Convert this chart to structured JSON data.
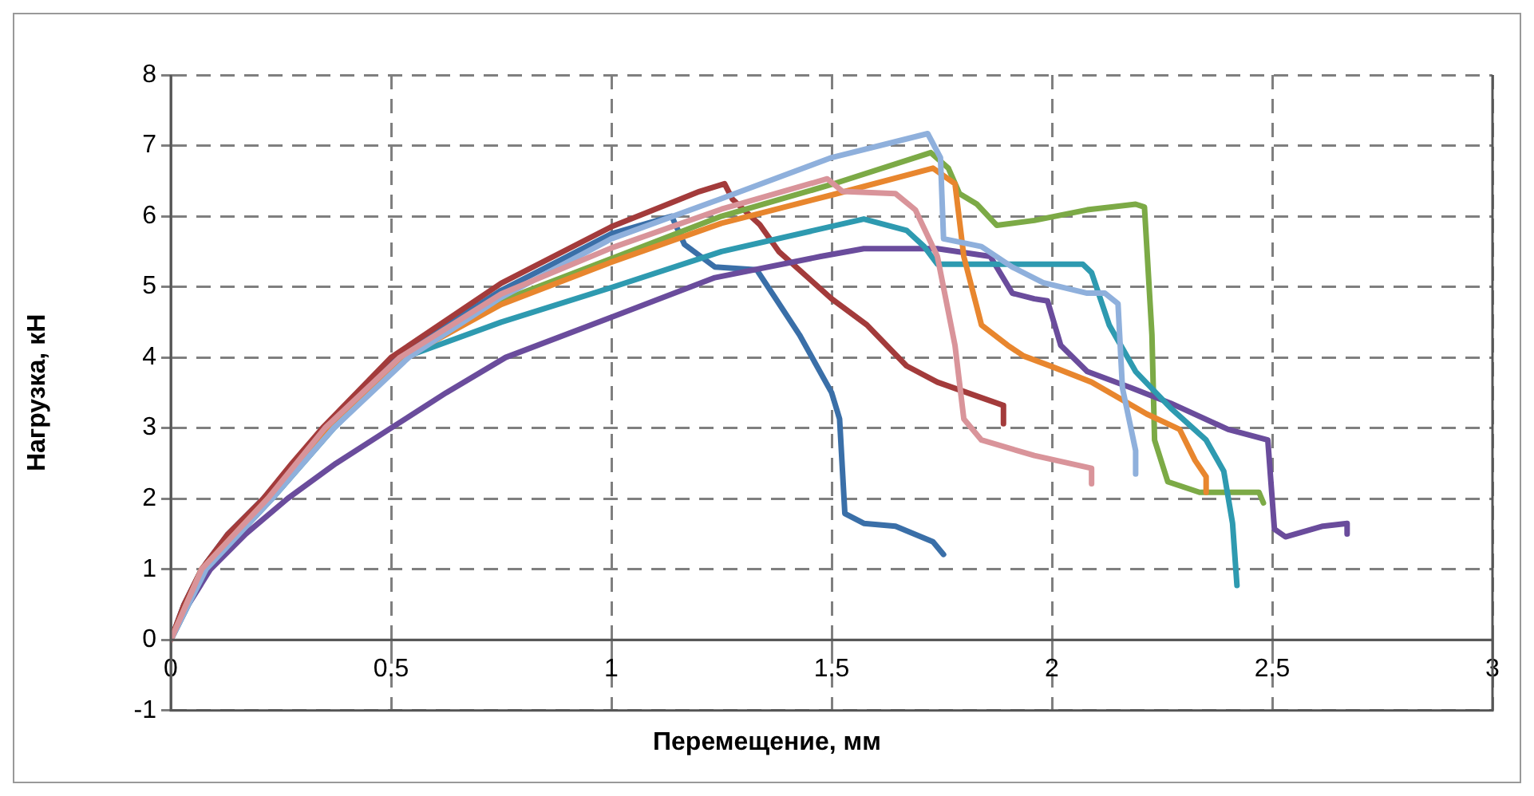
{
  "chart_data": {
    "type": "line",
    "xlabel": "Перемещение, мм",
    "ylabel": "Нагрузка, кН",
    "xlim": [
      0,
      3
    ],
    "xticks": [
      0,
      0.5,
      1,
      1.5,
      2,
      2.5,
      3
    ],
    "ylim": [
      -1,
      8
    ],
    "yticks": [
      -1,
      0,
      1,
      2,
      3,
      4,
      5,
      6,
      7,
      8
    ],
    "grid": true,
    "line_style": "solid",
    "marker": "none",
    "legend": false,
    "series": [
      {
        "color": "#3a6fa8",
        "x": [
          0,
          0.03,
          0.07,
          0.13,
          0.21,
          0.35,
          0.5,
          0.75,
          1,
          1.137,
          1.166,
          1.235,
          1.33,
          1.366,
          1.427,
          1.5,
          1.518,
          1.53,
          1.573,
          1.645,
          1.73,
          1.754
        ],
        "values": [
          0,
          0.5,
          1,
          1.5,
          2,
          3,
          3.95,
          4.95,
          5.75,
          6,
          5.6,
          5.28,
          5.24,
          4.9,
          4.32,
          3.5,
          3.13,
          1.79,
          1.65,
          1.61,
          1.39,
          1.21
        ]
      },
      {
        "color": "#a33b3b",
        "x": [
          0,
          0.03,
          0.07,
          0.13,
          0.21,
          0.275,
          0.344,
          0.5,
          0.75,
          1,
          1.2,
          1.257,
          1.275,
          1.337,
          1.38,
          1.5,
          1.58,
          1.67,
          1.74,
          1.84,
          1.89,
          1.89
        ],
        "values": [
          0,
          0.5,
          1,
          1.5,
          2,
          2.5,
          3,
          4,
          5.05,
          5.85,
          6.35,
          6.46,
          6.24,
          5.88,
          5.5,
          4.83,
          4.46,
          3.88,
          3.65,
          3.43,
          3.32,
          3.06
        ]
      },
      {
        "color": "#7caa46",
        "x": [
          0.53,
          0.75,
          1,
          1.25,
          1.5,
          1.725,
          1.765,
          1.79,
          1.83,
          1.875,
          1.96,
          2.08,
          2.19,
          2.21,
          2.227,
          2.233,
          2.263,
          2.335,
          2.47,
          2.48
        ],
        "values": [
          4,
          4.8,
          5.4,
          6,
          6.45,
          6.9,
          6.68,
          6.32,
          6.17,
          5.87,
          5.94,
          6.09,
          6.17,
          6.13,
          4.32,
          2.83,
          2.24,
          2.09,
          2.09,
          1.94
        ]
      },
      {
        "color": "#6a4c9c",
        "x": [
          0,
          0.04,
          0.09,
          0.17,
          0.265,
          0.375,
          0.5,
          0.625,
          0.76,
          1,
          1.235,
          1.475,
          1.573,
          1.74,
          1.86,
          1.91,
          1.96,
          1.99,
          2.02,
          2.08,
          2.18,
          2.27,
          2.4,
          2.49,
          2.505,
          2.53,
          2.615,
          2.67,
          2.67
        ],
        "values": [
          0,
          0.5,
          1,
          1.5,
          2,
          2.5,
          3,
          3.5,
          4,
          4.57,
          5.13,
          5.43,
          5.54,
          5.54,
          5.43,
          4.91,
          4.83,
          4.8,
          4.17,
          3.8,
          3.57,
          3.35,
          2.98,
          2.83,
          1.57,
          1.46,
          1.61,
          1.65,
          1.5
        ]
      },
      {
        "color": "#2e9ab0",
        "x": [
          0,
          0.04,
          0.08,
          0.23,
          0.37,
          0.53,
          0.75,
          1,
          1.25,
          1.573,
          1.67,
          1.71,
          1.74,
          1.84,
          2.07,
          2.09,
          2.13,
          2.19,
          2.27,
          2.35,
          2.39,
          2.41,
          2.42
        ],
        "values": [
          0,
          0.5,
          1,
          2,
          3,
          4,
          4.5,
          4.99,
          5.5,
          5.96,
          5.8,
          5.57,
          5.32,
          5.32,
          5.32,
          5.2,
          4.46,
          3.8,
          3.28,
          2.83,
          2.39,
          1.65,
          0.77
        ]
      },
      {
        "color": "#e8862e",
        "x": [
          0,
          0.035,
          0.07,
          0.22,
          0.36,
          0.53,
          0.75,
          1,
          1.25,
          1.5,
          1.73,
          1.78,
          1.8,
          1.84,
          1.9,
          1.936,
          2,
          2.09,
          2.215,
          2.29,
          2.325,
          2.35,
          2.35
        ],
        "values": [
          0,
          0.5,
          1,
          2,
          3,
          4,
          4.75,
          5.35,
          5.9,
          6.3,
          6.68,
          6.46,
          5.43,
          4.46,
          4.17,
          4.02,
          3.87,
          3.65,
          3.2,
          2.98,
          2.54,
          2.31,
          2.09
        ]
      },
      {
        "color": "#8fb0dc",
        "x": [
          0,
          0.04,
          0.08,
          0.23,
          0.37,
          0.54,
          0.75,
          1,
          1.25,
          1.5,
          1.718,
          1.747,
          1.754,
          1.84,
          1.91,
          1.98,
          2.08,
          2.12,
          2.15,
          2.16,
          2.19,
          2.19
        ],
        "values": [
          0,
          0.5,
          1,
          2,
          3,
          4,
          4.85,
          5.68,
          6.25,
          6.83,
          7.17,
          6.83,
          5.68,
          5.57,
          5.28,
          5.06,
          4.91,
          4.91,
          4.76,
          3.57,
          2.68,
          2.35
        ]
      },
      {
        "color": "#d9949a",
        "x": [
          0,
          0.035,
          0.07,
          0.22,
          0.35,
          0.52,
          0.75,
          1,
          1.25,
          1.49,
          1.525,
          1.645,
          1.69,
          1.74,
          1.78,
          1.8,
          1.84,
          1.96,
          2.09,
          2.09
        ],
        "values": [
          0,
          0.5,
          1,
          2,
          3,
          4,
          4.9,
          5.55,
          6.1,
          6.53,
          6.35,
          6.32,
          6.09,
          5.43,
          4.17,
          3.13,
          2.83,
          2.61,
          2.43,
          2.21
        ]
      }
    ]
  }
}
